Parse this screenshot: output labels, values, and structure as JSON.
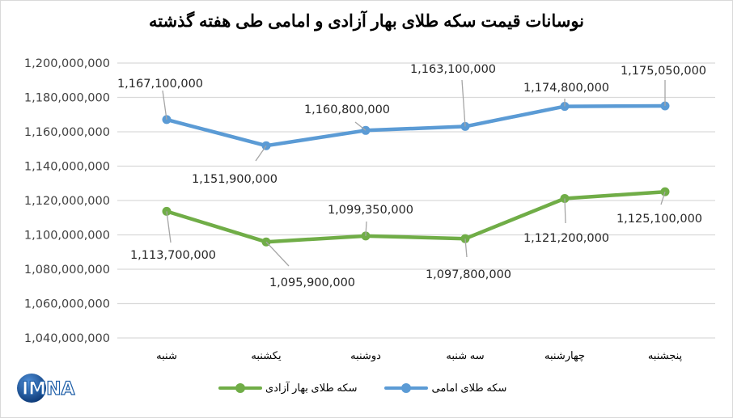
{
  "title": "نوسانات قیمت سکه طلای بهار آزادی و امامی طی هفته گذشته",
  "colors": {
    "emami": "#5B9BD5",
    "bahar_azadi": "#70AD47",
    "grid": "#D9D9D9",
    "leader": "#A6A6A6",
    "logo_blue": "#1F5FA8"
  },
  "logo": {
    "text": "IMNA"
  },
  "legend": [
    {
      "label": "سکه طلای امامی",
      "color": "#5B9BD5"
    },
    {
      "label": "سکه طلای بهار آزادی",
      "color": "#70AD47"
    }
  ],
  "chart_data": {
    "type": "line",
    "title": "نوسانات قیمت سکه طلای بهار آزادی و امامی طی هفته گذشته",
    "xlabel": "",
    "ylabel": "",
    "categories": [
      "شنبه",
      "یکشنبه",
      "دوشنبه",
      "سه شنبه",
      "چهارشنبه",
      "پنجشنبه"
    ],
    "series": [
      {
        "name": "سکه طلای امامی",
        "color": "#5B9BD5",
        "values": [
          1167100000,
          1151900000,
          1160800000,
          1163100000,
          1174800000,
          1175050000
        ],
        "labels": [
          "1,167,100,000",
          "1,151,900,000",
          "1,160,800,000",
          "1,163,100,000",
          "1,174,800,000",
          "1,175,050,000"
        ]
      },
      {
        "name": "سکه طلای بهار آزادی",
        "color": "#70AD47",
        "values": [
          1113700000,
          1095900000,
          1099350000,
          1097800000,
          1121200000,
          1125100000
        ],
        "labels": [
          "1,113,700,000",
          "1,095,900,000",
          "1,099,350,000",
          "1,097,800,000",
          "1,121,200,000",
          "1,125,100,000"
        ]
      }
    ],
    "yticks": [
      "1,200,000,000",
      "1,180,000,000",
      "1,160,000,000",
      "1,140,000,000",
      "1,120,000,000",
      "1,100,000,000",
      "1,080,000,000",
      "1,060,000,000",
      "1,040,000,000"
    ],
    "ylim": [
      1040000000,
      1200000000
    ],
    "grid": true,
    "legend_position": "bottom"
  }
}
